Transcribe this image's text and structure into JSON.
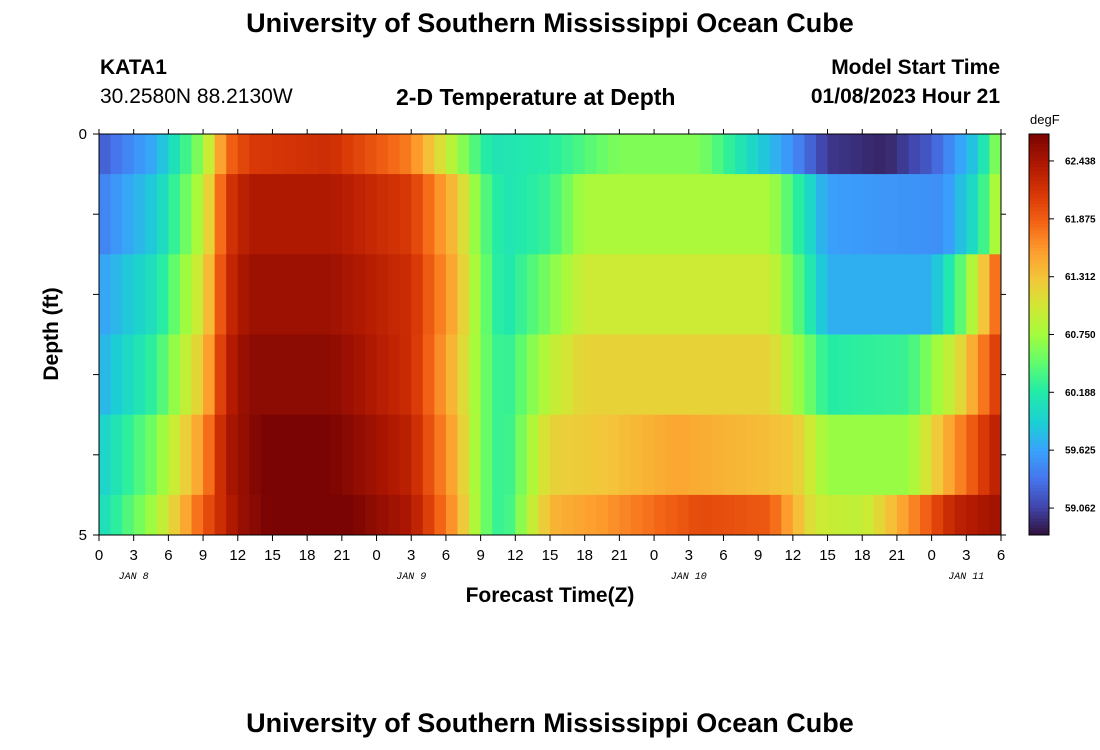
{
  "header": {
    "title": "University of Southern Mississippi Ocean Cube",
    "station": "KATA1",
    "coords": "30.2580N  88.2130W",
    "subtitle": "2-D Temperature at Depth",
    "model_start_label": "Model Start Time",
    "model_start_time": "01/08/2023 Hour 21"
  },
  "footer": {
    "title": "University of Southern Mississippi Ocean Cube"
  },
  "chart_data": {
    "type": "heatmap",
    "title": "2-D Temperature at Depth",
    "xlabel": "Forecast Time(Z)",
    "ylabel": "Depth (ft)",
    "colorbar_unit": "degF",
    "x_tick_labels": [
      "0",
      "3",
      "6",
      "9",
      "12",
      "15",
      "18",
      "21",
      "0",
      "3",
      "6",
      "9",
      "12",
      "15",
      "18",
      "21",
      "0",
      "3",
      "6",
      "9",
      "12",
      "15",
      "18",
      "21",
      "0",
      "3",
      "6"
    ],
    "x_range_hours": [
      0,
      78
    ],
    "y_tick_labels": [
      "0",
      "5"
    ],
    "y_range": [
      0,
      5
    ],
    "date_labels": [
      {
        "text": "JAN 8",
        "hour": 3
      },
      {
        "text": "JAN 9",
        "hour": 27
      },
      {
        "text": "JAN 10",
        "hour": 51
      },
      {
        "text": "JAN 11",
        "hour": 75
      }
    ],
    "colorbar_ticks": [
      62.438,
      61.875,
      61.312,
      60.75,
      60.188,
      59.625,
      59.062
    ],
    "colorbar_range": [
      58.8,
      62.7
    ],
    "depth_layers": [
      {
        "depth_range": [
          0,
          0.5
        ],
        "keyframes": [
          [
            0,
            59.2
          ],
          [
            5,
            59.7
          ],
          [
            9,
            60.7
          ],
          [
            11,
            61.8
          ],
          [
            13,
            62.1
          ],
          [
            20,
            62.2
          ],
          [
            27,
            61.7
          ],
          [
            32,
            60.5
          ],
          [
            34,
            60.1
          ],
          [
            39,
            60.2
          ],
          [
            45,
            60.6
          ],
          [
            52,
            60.6
          ],
          [
            60,
            59.5
          ],
          [
            63,
            59.0
          ],
          [
            68,
            58.9
          ],
          [
            72,
            59.2
          ],
          [
            76,
            59.9
          ],
          [
            78,
            60.8
          ]
        ]
      },
      {
        "depth_range": [
          0.5,
          1.5
        ],
        "keyframes": [
          [
            0,
            59.4
          ],
          [
            5,
            59.9
          ],
          [
            9,
            60.9
          ],
          [
            11,
            62.1
          ],
          [
            13,
            62.4
          ],
          [
            20,
            62.4
          ],
          [
            27,
            62.1
          ],
          [
            31,
            61.3
          ],
          [
            33,
            60.5
          ],
          [
            35,
            60.1
          ],
          [
            39,
            60.3
          ],
          [
            42,
            60.8
          ],
          [
            58,
            60.8
          ],
          [
            61,
            60.1
          ],
          [
            63,
            59.6
          ],
          [
            73,
            59.5
          ],
          [
            76,
            60.1
          ],
          [
            78,
            61.0
          ]
        ]
      },
      {
        "depth_range": [
          1.5,
          2.5
        ],
        "keyframes": [
          [
            0,
            59.6
          ],
          [
            5,
            60.1
          ],
          [
            9,
            61.1
          ],
          [
            11,
            62.2
          ],
          [
            13,
            62.5
          ],
          [
            20,
            62.5
          ],
          [
            27,
            62.2
          ],
          [
            31,
            61.4
          ],
          [
            33,
            60.6
          ],
          [
            35,
            60.1
          ],
          [
            39,
            60.6
          ],
          [
            42,
            61.0
          ],
          [
            58,
            61.0
          ],
          [
            61,
            60.3
          ],
          [
            63,
            59.7
          ],
          [
            72,
            59.7
          ],
          [
            75,
            60.6
          ],
          [
            78,
            62.0
          ]
        ]
      },
      {
        "depth_range": [
          2.5,
          3.5
        ],
        "keyframes": [
          [
            0,
            59.7
          ],
          [
            5,
            60.3
          ],
          [
            9,
            61.3
          ],
          [
            11,
            62.3
          ],
          [
            13,
            62.6
          ],
          [
            20,
            62.6
          ],
          [
            27,
            62.2
          ],
          [
            31,
            61.3
          ],
          [
            33,
            60.6
          ],
          [
            35,
            60.2
          ],
          [
            39,
            60.9
          ],
          [
            42,
            61.2
          ],
          [
            58,
            61.2
          ],
          [
            61,
            60.6
          ],
          [
            63,
            60.2
          ],
          [
            70,
            60.3
          ],
          [
            74,
            61.0
          ],
          [
            78,
            62.2
          ]
        ]
      },
      {
        "depth_range": [
          3.5,
          4.5
        ],
        "keyframes": [
          [
            0,
            59.9
          ],
          [
            5,
            60.6
          ],
          [
            9,
            61.6
          ],
          [
            11,
            62.4
          ],
          [
            14,
            62.7
          ],
          [
            20,
            62.7
          ],
          [
            27,
            62.3
          ],
          [
            31,
            61.4
          ],
          [
            33,
            60.6
          ],
          [
            35,
            60.2
          ],
          [
            39,
            61.2
          ],
          [
            44,
            61.3
          ],
          [
            50,
            61.5
          ],
          [
            60,
            61.3
          ],
          [
            63,
            60.7
          ],
          [
            70,
            60.7
          ],
          [
            74,
            61.6
          ],
          [
            78,
            62.4
          ]
        ]
      },
      {
        "depth_range": [
          4.5,
          5
        ],
        "keyframes": [
          [
            0,
            60.0
          ],
          [
            5,
            60.8
          ],
          [
            9,
            61.9
          ],
          [
            12,
            62.5
          ],
          [
            16,
            62.8
          ],
          [
            20,
            62.8
          ],
          [
            27,
            62.4
          ],
          [
            31,
            61.5
          ],
          [
            33,
            60.6
          ],
          [
            35,
            60.2
          ],
          [
            39,
            61.4
          ],
          [
            44,
            61.6
          ],
          [
            52,
            62.0
          ],
          [
            58,
            61.9
          ],
          [
            62,
            61.0
          ],
          [
            66,
            60.9
          ],
          [
            70,
            61.6
          ],
          [
            74,
            62.3
          ],
          [
            78,
            62.5
          ]
        ]
      }
    ]
  }
}
